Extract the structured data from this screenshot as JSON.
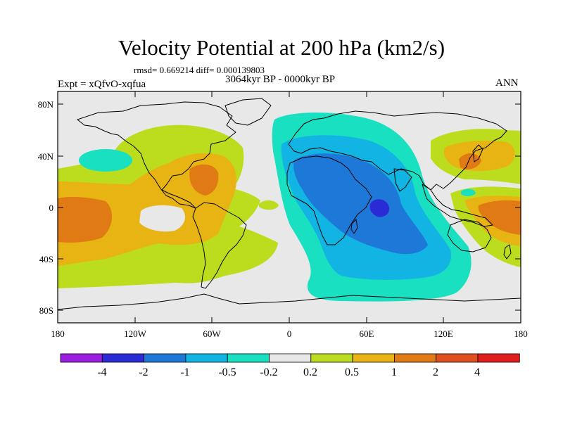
{
  "header": {
    "title": "Velocity Potential at 200 hPa (km2/s)",
    "stats": "rmsd= 0.669214 diff= 0.000139803",
    "experiment": "Expt = xQfvO-xqfua",
    "period": "3064kyr BP - 0000kyr BP",
    "season": "ANN"
  },
  "map": {
    "latitude_labels": [
      "80N",
      "40N",
      "0",
      "40S",
      "80S"
    ],
    "longitude_labels": [
      "180",
      "120W",
      "60W",
      "0",
      "60E",
      "120E",
      "180"
    ]
  },
  "colorbar": {
    "labels": [
      "-4",
      "-2",
      "-1",
      "-0.5",
      "-0.2",
      "0.2",
      "0.5",
      "1",
      "2",
      "4"
    ],
    "colors": [
      "#9a1ee0",
      "#2b2bd6",
      "#1e78d8",
      "#11b4e2",
      "#18e0c0",
      "#e8e8e8",
      "#bcdc1e",
      "#e8b414",
      "#e07a14",
      "#e0501e",
      "#e01e1e"
    ]
  },
  "palette": {
    "ocean_background": "#e8e8e8",
    "coast": "#000000"
  }
}
